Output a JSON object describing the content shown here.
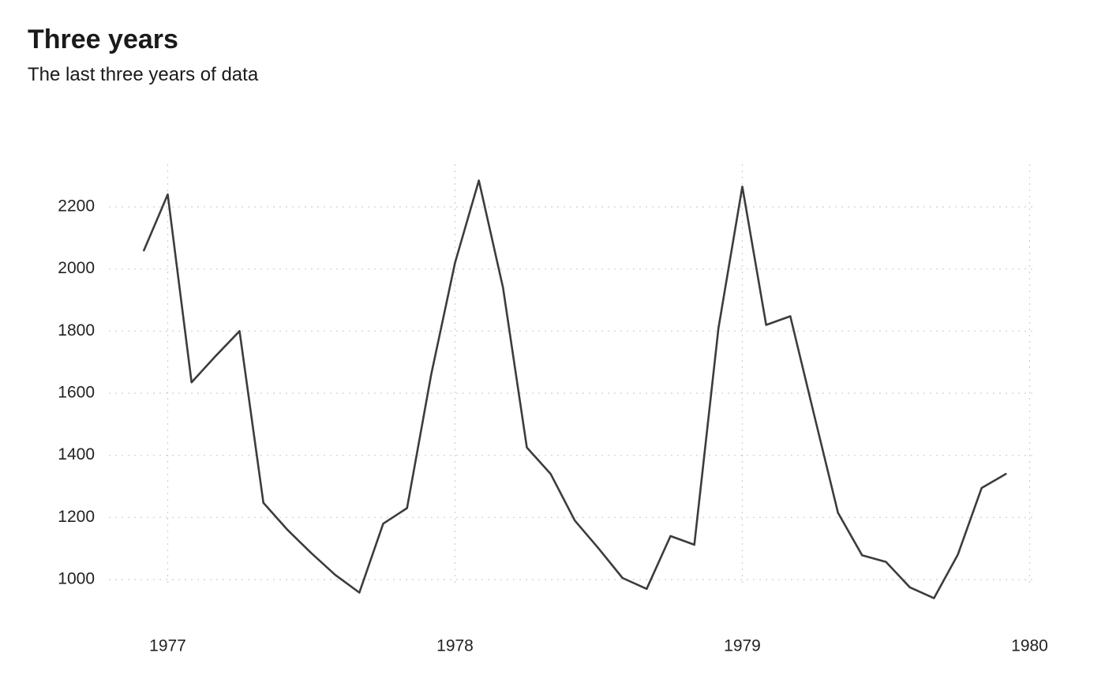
{
  "chart_data": {
    "type": "line",
    "title": "Three years",
    "subtitle": "The last three years of data",
    "xlabel": "",
    "ylabel": "",
    "x_ticks": [
      1977,
      1978,
      1979,
      1980
    ],
    "y_ticks": [
      1000,
      1200,
      1400,
      1600,
      1800,
      2000,
      2200
    ],
    "xlim": [
      1976.917,
      1980
    ],
    "ylim": [
      960,
      2300
    ],
    "grid": true,
    "legend": "none",
    "series": [
      {
        "x": [
          1976.917,
          1977.0,
          1977.083,
          1977.167,
          1977.25,
          1977.333,
          1977.417,
          1977.5,
          1977.583,
          1977.667,
          1977.75,
          1977.833,
          1977.917,
          1978.0,
          1978.083,
          1978.167,
          1978.25,
          1978.333,
          1978.417,
          1978.5,
          1978.583,
          1978.667,
          1978.75,
          1978.833,
          1978.917,
          1979.0,
          1979.083,
          1979.167,
          1979.25,
          1979.333,
          1979.417,
          1979.5,
          1979.583,
          1979.667,
          1979.75,
          1979.833,
          1979.917
        ],
        "y": [
          2060,
          2240,
          1635,
          1720,
          1800,
          1247,
          1160,
          1085,
          1015,
          958,
          1180,
          1230,
          1660,
          2020,
          2285,
          1940,
          1425,
          1340,
          1190,
          1100,
          1005,
          970,
          1140,
          1112,
          1810,
          2265,
          1820,
          1848,
          1530,
          1215,
          1078,
          1057,
          975,
          940,
          1080,
          1295,
          1340
        ]
      }
    ],
    "colors": {
      "line": "#3c3c3c",
      "grid": "#cfcfcf",
      "text": "#1a1a1a"
    }
  }
}
